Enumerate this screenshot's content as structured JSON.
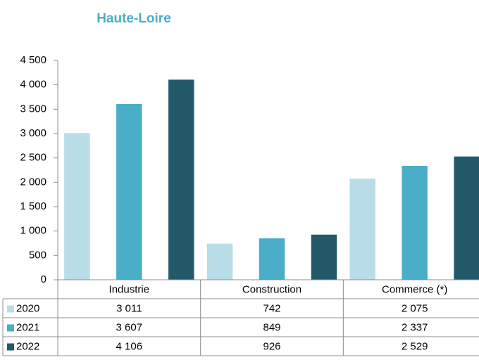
{
  "chart_data": {
    "type": "bar",
    "title": "Haute-Loire",
    "categories": [
      "Industrie",
      "Construction",
      "Commerce (*)"
    ],
    "series": [
      {
        "name": "2020",
        "color": "#b8dde8",
        "values": [
          3011,
          742,
          2075
        ],
        "value_labels": [
          "3 011",
          "742",
          "2 075"
        ]
      },
      {
        "name": "2021",
        "color": "#4aaec8",
        "values": [
          3607,
          849,
          2337
        ],
        "value_labels": [
          "3 607",
          "849",
          "2 337"
        ]
      },
      {
        "name": "2022",
        "color": "#225a6a",
        "values": [
          4106,
          926,
          2529
        ],
        "value_labels": [
          "4 106",
          "926",
          "2 529"
        ]
      }
    ],
    "ylim": [
      0,
      4500
    ],
    "yticks": [
      0,
      500,
      {
        "value": 1000,
        "label": "1 000"
      },
      {
        "value": 1500,
        "label": "1 500"
      },
      {
        "value": 2000,
        "label": "2 000"
      },
      {
        "value": 2500,
        "label": "2 500"
      },
      {
        "value": 3000,
        "label": "3 000"
      },
      {
        "value": 3500,
        "label": "3 500"
      },
      {
        "value": 4000,
        "label": "4 000"
      },
      {
        "value": 4500,
        "label": "4 500"
      }
    ],
    "grid": false
  }
}
